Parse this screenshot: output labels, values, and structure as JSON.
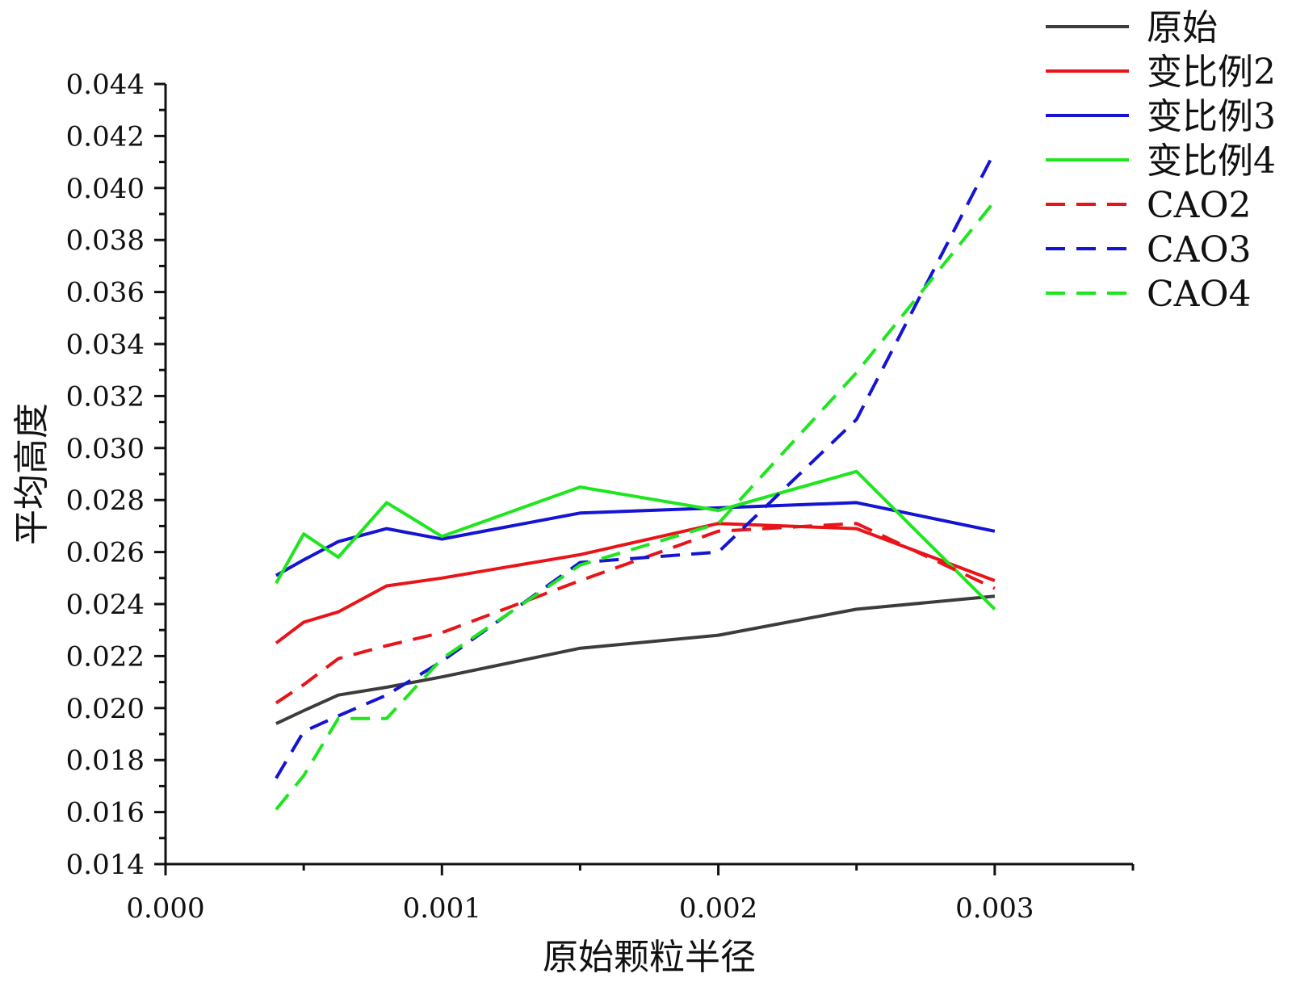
{
  "chart_data": {
    "type": "line",
    "title": "",
    "xlabel": "原始颗粒半径",
    "ylabel": "平均高度",
    "xlim": [
      0.0,
      0.0035
    ],
    "ylim": [
      0.014,
      0.044
    ],
    "x_ticks": [
      "0.000",
      "0.001",
      "0.002",
      "0.003"
    ],
    "y_ticks": [
      "0.014",
      "0.016",
      "0.018",
      "0.020",
      "0.022",
      "0.024",
      "0.026",
      "0.028",
      "0.030",
      "0.032",
      "0.034",
      "0.036",
      "0.038",
      "0.040",
      "0.042",
      "0.044"
    ],
    "grid": false,
    "legend_position": "top-right",
    "series": [
      {
        "name": "原始",
        "color": "#3c3c3c",
        "dashed": false,
        "x": [
          0.0004,
          0.0005,
          0.000625,
          0.0008,
          0.001,
          0.0015,
          0.002,
          0.0025,
          0.003
        ],
        "y": [
          0.0194,
          0.0199,
          0.0205,
          0.0208,
          0.0212,
          0.0223,
          0.0228,
          0.0238,
          0.0243
        ]
      },
      {
        "name": "变比例2",
        "color": "#e8141a",
        "dashed": false,
        "x": [
          0.0004,
          0.0005,
          0.000625,
          0.0008,
          0.001,
          0.0015,
          0.002,
          0.0025,
          0.003
        ],
        "y": [
          0.0225,
          0.0233,
          0.0237,
          0.0247,
          0.025,
          0.0259,
          0.0271,
          0.0269,
          0.0249
        ]
      },
      {
        "name": "变比例3",
        "color": "#1414d2",
        "dashed": false,
        "x": [
          0.0004,
          0.0005,
          0.000625,
          0.0008,
          0.001,
          0.0015,
          0.002,
          0.0025,
          0.003
        ],
        "y": [
          0.0251,
          0.0257,
          0.0264,
          0.0269,
          0.0265,
          0.0275,
          0.0277,
          0.0279,
          0.0268
        ]
      },
      {
        "name": "变比例4",
        "color": "#1ee61e",
        "dashed": false,
        "x": [
          0.0004,
          0.0005,
          0.000625,
          0.0008,
          0.001,
          0.0015,
          0.002,
          0.0025,
          0.003
        ],
        "y": [
          0.0248,
          0.0267,
          0.0258,
          0.0279,
          0.0266,
          0.0285,
          0.0276,
          0.0291,
          0.0238
        ]
      },
      {
        "name": "CAO2",
        "color": "#e8141a",
        "dashed": true,
        "x": [
          0.0004,
          0.0005,
          0.000625,
          0.0008,
          0.001,
          0.0015,
          0.002,
          0.0025,
          0.003
        ],
        "y": [
          0.0202,
          0.0209,
          0.0219,
          0.0224,
          0.0229,
          0.0249,
          0.0268,
          0.0271,
          0.0246
        ]
      },
      {
        "name": "CAO3",
        "color": "#1414d2",
        "dashed": true,
        "x": [
          0.0004,
          0.0005,
          0.000625,
          0.0008,
          0.001,
          0.0015,
          0.002,
          0.0025,
          0.003
        ],
        "y": [
          0.0173,
          0.0191,
          0.0197,
          0.0205,
          0.0218,
          0.0256,
          0.026,
          0.0311,
          0.0414
        ]
      },
      {
        "name": "CAO4",
        "color": "#1ee61e",
        "dashed": true,
        "x": [
          0.0004,
          0.0005,
          0.000625,
          0.0008,
          0.001,
          0.0015,
          0.002,
          0.0025,
          0.003
        ],
        "y": [
          0.0161,
          0.0174,
          0.0196,
          0.0196,
          0.0219,
          0.0255,
          0.0271,
          0.0329,
          0.0395
        ]
      }
    ]
  }
}
